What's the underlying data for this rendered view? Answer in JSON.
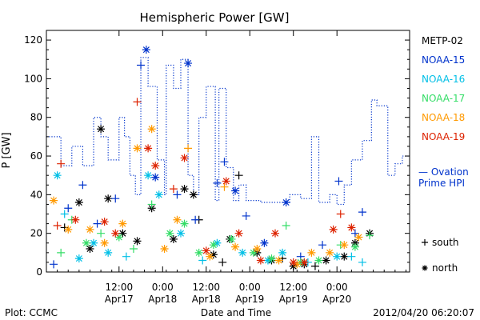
{
  "chart_data": {
    "type": "scatter",
    "title": "Hemispheric Power [GW]",
    "xlabel": "Date and Time",
    "ylabel": "P [GW]",
    "ylim": [
      0,
      125
    ],
    "xlim": [
      "2012-04-16 16:00",
      "2012-04-20 20:00"
    ],
    "y_ticks": [
      0,
      20,
      40,
      60,
      80,
      100,
      120
    ],
    "x_ticks": [
      {
        "time": "2012-04-17 12:00",
        "label_top": "12:00",
        "label_bottom": "Apr17"
      },
      {
        "time": "2012-04-18 00:00",
        "label_top": "0:00",
        "label_bottom": "Apr18"
      },
      {
        "time": "2012-04-18 12:00",
        "label_top": "12:00",
        "label_bottom": "Apr18"
      },
      {
        "time": "2012-04-19 00:00",
        "label_top": "0:00",
        "label_bottom": "Apr19"
      },
      {
        "time": "2012-04-19 12:00",
        "label_top": "12:00",
        "label_bottom": "Apr19"
      },
      {
        "time": "2012-04-20 00:00",
        "label_top": "0:00",
        "label_bottom": "Apr20"
      }
    ],
    "grid": false,
    "legend_placement": "right",
    "series": [
      {
        "name": "Ovation Prime HPI",
        "legend_lines": [
          "— Ovation",
          "Prime HPI"
        ],
        "kind": "step",
        "style": "dotted",
        "color": "#0033cc",
        "points": [
          [
            "2012-04-16 16:00",
            70
          ],
          [
            "2012-04-16 20:00",
            55
          ],
          [
            "2012-04-16 23:00",
            65
          ],
          [
            "2012-04-17 02:00",
            55
          ],
          [
            "2012-04-17 05:00",
            80
          ],
          [
            "2012-04-17 07:00",
            70
          ],
          [
            "2012-04-17 09:00",
            58
          ],
          [
            "2012-04-17 12:00",
            80
          ],
          [
            "2012-04-17 13:30",
            70
          ],
          [
            "2012-04-17 15:00",
            50
          ],
          [
            "2012-04-17 16:30",
            40
          ],
          [
            "2012-04-17 18:00",
            111
          ],
          [
            "2012-04-17 20:00",
            96
          ],
          [
            "2012-04-17 22:30",
            58
          ],
          [
            "2012-04-18 00:30",
            40
          ],
          [
            "2012-04-18 01:00",
            107
          ],
          [
            "2012-04-18 03:00",
            95
          ],
          [
            "2012-04-18 05:00",
            110
          ],
          [
            "2012-04-18 07:00",
            50
          ],
          [
            "2012-04-18 08:30",
            40
          ],
          [
            "2012-04-18 10:00",
            80
          ],
          [
            "2012-04-18 12:00",
            96
          ],
          [
            "2012-04-18 14:30",
            37
          ],
          [
            "2012-04-18 15:30",
            95
          ],
          [
            "2012-04-18 17:30",
            54
          ],
          [
            "2012-04-18 19:30",
            37
          ],
          [
            "2012-04-18 21:00",
            45
          ],
          [
            "2012-04-18 23:00",
            37
          ],
          [
            "2012-04-19 03:00",
            36
          ],
          [
            "2012-04-19 07:00",
            36
          ],
          [
            "2012-04-19 11:00",
            40
          ],
          [
            "2012-04-19 14:00",
            38
          ],
          [
            "2012-04-19 17:00",
            70
          ],
          [
            "2012-04-19 19:00",
            36
          ],
          [
            "2012-04-19 22:00",
            40
          ],
          [
            "2012-04-20 00:00",
            35
          ],
          [
            "2012-04-20 02:00",
            45
          ],
          [
            "2012-04-20 04:00",
            58
          ],
          [
            "2012-04-20 07:00",
            68
          ],
          [
            "2012-04-20 09:30",
            89
          ],
          [
            "2012-04-20 11:00",
            86
          ],
          [
            "2012-04-20 14:00",
            50
          ],
          [
            "2012-04-20 16:00",
            56
          ],
          [
            "2012-04-20 18:00",
            60
          ]
        ]
      },
      {
        "name": "METP-02",
        "color": "#000000",
        "points": [
          [
            "2012-04-16 21:00",
            23,
            "south"
          ],
          [
            "2012-04-17 01:00",
            36,
            "north"
          ],
          [
            "2012-04-17 04:00",
            12,
            "north"
          ],
          [
            "2012-04-17 07:00",
            74,
            "north"
          ],
          [
            "2012-04-17 09:00",
            38,
            "north"
          ],
          [
            "2012-04-17 13:00",
            20,
            "north"
          ],
          [
            "2012-04-17 17:00",
            16,
            "north"
          ],
          [
            "2012-04-17 21:00",
            33,
            "north"
          ],
          [
            "2012-04-18 03:00",
            17,
            "north"
          ],
          [
            "2012-04-18 06:00",
            43,
            "north"
          ],
          [
            "2012-04-18 08:30",
            40,
            "north"
          ],
          [
            "2012-04-18 10:00",
            27,
            "south"
          ],
          [
            "2012-04-18 14:00",
            9,
            "north"
          ],
          [
            "2012-04-18 16:30",
            5,
            "south"
          ],
          [
            "2012-04-18 18:30",
            17,
            "north"
          ],
          [
            "2012-04-18 21:00",
            50,
            "south"
          ],
          [
            "2012-04-19 02:00",
            10,
            "north"
          ],
          [
            "2012-04-19 06:00",
            6,
            "north"
          ],
          [
            "2012-04-19 09:00",
            7,
            "south"
          ],
          [
            "2012-04-19 12:00",
            3,
            "north"
          ],
          [
            "2012-04-19 15:00",
            4,
            "north"
          ],
          [
            "2012-04-19 18:00",
            3,
            "south"
          ],
          [
            "2012-04-19 21:00",
            6,
            "north"
          ],
          [
            "2012-04-20 02:00",
            8,
            "north"
          ],
          [
            "2012-04-20 05:00",
            15,
            "north"
          ],
          [
            "2012-04-20 09:00",
            20,
            "north"
          ]
        ]
      },
      {
        "name": "NOAA-15",
        "color": "#0033cc",
        "points": [
          [
            "2012-04-16 18:00",
            4,
            "south"
          ],
          [
            "2012-04-16 22:00",
            33,
            "south"
          ],
          [
            "2012-04-17 02:00",
            45,
            "south"
          ],
          [
            "2012-04-17 06:00",
            25,
            "south"
          ],
          [
            "2012-04-17 11:00",
            38,
            "south"
          ],
          [
            "2012-04-17 18:00",
            107,
            "south"
          ],
          [
            "2012-04-17 19:30",
            115,
            "north"
          ],
          [
            "2012-04-17 22:00",
            49,
            "north"
          ],
          [
            "2012-04-18 04:00",
            40,
            "south"
          ],
          [
            "2012-04-18 07:00",
            108,
            "north"
          ],
          [
            "2012-04-18 09:00",
            27,
            "south"
          ],
          [
            "2012-04-18 15:00",
            46,
            "south"
          ],
          [
            "2012-04-18 17:00",
            57,
            "south"
          ],
          [
            "2012-04-18 20:00",
            42,
            "north"
          ],
          [
            "2012-04-18 23:00",
            29,
            "south"
          ],
          [
            "2012-04-19 04:00",
            15,
            "north"
          ],
          [
            "2012-04-19 10:00",
            36,
            "north"
          ],
          [
            "2012-04-19 14:00",
            8,
            "south"
          ],
          [
            "2012-04-19 20:00",
            14,
            "south"
          ],
          [
            "2012-04-20 00:30",
            47,
            "south"
          ],
          [
            "2012-04-20 05:00",
            20,
            "south"
          ],
          [
            "2012-04-20 07:00",
            31,
            "south"
          ]
        ]
      },
      {
        "name": "NOAA-16",
        "color": "#00bfe6",
        "points": [
          [
            "2012-04-16 19:00",
            50,
            "north"
          ],
          [
            "2012-04-16 21:00",
            30,
            "south"
          ],
          [
            "2012-04-17 01:00",
            7,
            "north"
          ],
          [
            "2012-04-17 05:00",
            15,
            "north"
          ],
          [
            "2012-04-17 09:00",
            10,
            "north"
          ],
          [
            "2012-04-17 14:00",
            8,
            "south"
          ],
          [
            "2012-04-17 20:00",
            50,
            "north"
          ],
          [
            "2012-04-17 23:00",
            40,
            "north"
          ],
          [
            "2012-04-18 05:00",
            20,
            "north"
          ],
          [
            "2012-04-18 11:00",
            6,
            "south"
          ],
          [
            "2012-04-18 15:00",
            15,
            "north"
          ],
          [
            "2012-04-18 22:00",
            10,
            "north"
          ],
          [
            "2012-04-19 05:00",
            6,
            "north"
          ],
          [
            "2012-04-19 09:00",
            10,
            "north"
          ],
          [
            "2012-04-19 16:00",
            5,
            "south"
          ],
          [
            "2012-04-20 00:00",
            8,
            "north"
          ],
          [
            "2012-04-20 04:00",
            8,
            "south"
          ],
          [
            "2012-04-20 07:00",
            5,
            "south"
          ]
        ]
      },
      {
        "name": "NOAA-17",
        "color": "#33dd66",
        "points": [
          [
            "2012-04-16 20:00",
            10,
            "south"
          ],
          [
            "2012-04-16 23:00",
            27,
            "south"
          ],
          [
            "2012-04-17 03:00",
            15,
            "north"
          ],
          [
            "2012-04-17 07:00",
            20,
            "south"
          ],
          [
            "2012-04-17 12:00",
            18,
            "north"
          ],
          [
            "2012-04-17 16:00",
            12,
            "south"
          ],
          [
            "2012-04-17 21:00",
            35,
            "south"
          ],
          [
            "2012-04-18 02:00",
            20,
            "north"
          ],
          [
            "2012-04-18 06:00",
            25,
            "north"
          ],
          [
            "2012-04-18 10:00",
            10,
            "north"
          ],
          [
            "2012-04-18 14:00",
            14,
            "north"
          ],
          [
            "2012-04-18 19:00",
            17,
            "north"
          ],
          [
            "2012-04-19 01:00",
            10,
            "north"
          ],
          [
            "2012-04-19 06:00",
            7,
            "north"
          ],
          [
            "2012-04-19 10:00",
            24,
            "south"
          ],
          [
            "2012-04-19 14:00",
            5,
            "north"
          ],
          [
            "2012-04-19 19:00",
            6,
            "north"
          ],
          [
            "2012-04-20 01:00",
            14,
            "south"
          ],
          [
            "2012-04-20 05:00",
            13,
            "north"
          ],
          [
            "2012-04-20 09:00",
            19,
            "south"
          ]
        ]
      },
      {
        "name": "NOAA-18",
        "color": "#ff9900",
        "points": [
          [
            "2012-04-16 18:00",
            37,
            "north"
          ],
          [
            "2012-04-16 22:00",
            22,
            "north"
          ],
          [
            "2012-04-17 04:00",
            22,
            "north"
          ],
          [
            "2012-04-17 08:00",
            15,
            "north"
          ],
          [
            "2012-04-17 13:00",
            25,
            "north"
          ],
          [
            "2012-04-17 17:00",
            64,
            "north"
          ],
          [
            "2012-04-17 21:00",
            74,
            "north"
          ],
          [
            "2012-04-18 00:30",
            12,
            "north"
          ],
          [
            "2012-04-18 04:00",
            27,
            "north"
          ],
          [
            "2012-04-18 07:00",
            64,
            "south"
          ],
          [
            "2012-04-18 13:00",
            8,
            "north"
          ],
          [
            "2012-04-18 17:00",
            44,
            "south"
          ],
          [
            "2012-04-18 20:00",
            13,
            "north"
          ],
          [
            "2012-04-19 02:00",
            12,
            "north"
          ],
          [
            "2012-04-19 08:00",
            6,
            "north"
          ],
          [
            "2012-04-19 13:00",
            4,
            "north"
          ],
          [
            "2012-04-19 17:00",
            10,
            "north"
          ],
          [
            "2012-04-19 22:00",
            10,
            "north"
          ],
          [
            "2012-04-20 02:00",
            14,
            "north"
          ],
          [
            "2012-04-20 06:00",
            18,
            "north"
          ]
        ]
      },
      {
        "name": "NOAA-19",
        "color": "#dd2200",
        "points": [
          [
            "2012-04-16 19:00",
            24,
            "south"
          ],
          [
            "2012-04-16 20:00",
            56,
            "south"
          ],
          [
            "2012-04-17 00:00",
            27,
            "north"
          ],
          [
            "2012-04-17 08:00",
            26,
            "north"
          ],
          [
            "2012-04-17 11:00",
            20,
            "north"
          ],
          [
            "2012-04-17 17:00",
            88,
            "south"
          ],
          [
            "2012-04-17 20:00",
            64,
            "north"
          ],
          [
            "2012-04-17 22:00",
            55,
            "north"
          ],
          [
            "2012-04-18 03:00",
            43,
            "south"
          ],
          [
            "2012-04-18 06:00",
            59,
            "north"
          ],
          [
            "2012-04-18 12:00",
            11,
            "north"
          ],
          [
            "2012-04-18 17:30",
            47,
            "north"
          ],
          [
            "2012-04-18 21:00",
            20,
            "north"
          ],
          [
            "2012-04-19 03:00",
            6,
            "north"
          ],
          [
            "2012-04-19 07:00",
            20,
            "north"
          ],
          [
            "2012-04-19 12:00",
            5,
            "north"
          ],
          [
            "2012-04-19 15:00",
            5,
            "north"
          ],
          [
            "2012-04-19 23:00",
            22,
            "north"
          ],
          [
            "2012-04-20 01:00",
            30,
            "south"
          ],
          [
            "2012-04-20 04:00",
            23,
            "north"
          ]
        ]
      }
    ],
    "marker_legend": [
      {
        "symbol": "+",
        "label": "south"
      },
      {
        "symbol": "*",
        "label": "north"
      }
    ]
  },
  "footer": {
    "left": "Plot: CCMC",
    "right": "2012/04/20 06:20:07"
  }
}
